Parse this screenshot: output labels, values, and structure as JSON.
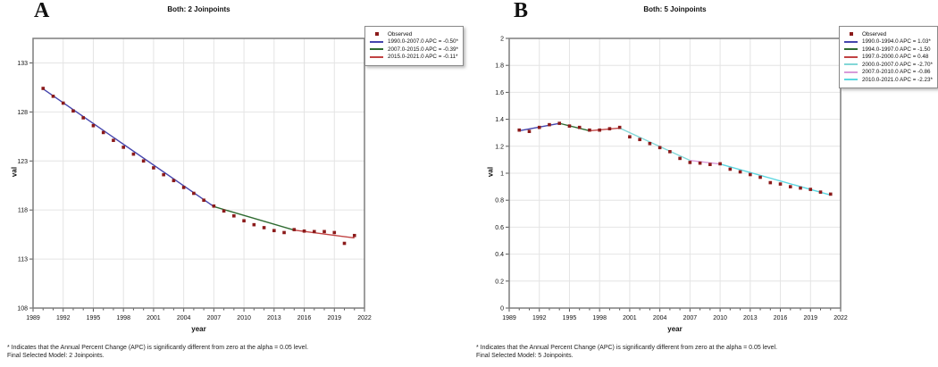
{
  "chart_data": [
    {
      "type": "line",
      "panel_label": "A",
      "title": "Both: 2 Joinpoints",
      "xlabel": "year",
      "ylabel": "val",
      "xlim": [
        1989,
        2022
      ],
      "ylim": [
        108,
        135.5
      ],
      "x_ticks": [
        1989,
        1992,
        1995,
        1998,
        2001,
        2004,
        2007,
        2010,
        2013,
        2016,
        2019,
        2022
      ],
      "y_ticks": [
        108,
        113,
        118,
        123,
        128,
        133
      ],
      "grid": true,
      "legend_position": "right-outside",
      "observed": {
        "label": "Observed",
        "color": "#8b1a1a",
        "years": [
          1990,
          1991,
          1992,
          1993,
          1994,
          1995,
          1996,
          1997,
          1998,
          1999,
          2000,
          2001,
          2002,
          2003,
          2004,
          2005,
          2006,
          2007,
          2008,
          2009,
          2010,
          2011,
          2012,
          2013,
          2014,
          2015,
          2016,
          2017,
          2018,
          2019,
          2020,
          2021
        ],
        "values": [
          130.4,
          129.6,
          128.9,
          128.1,
          127.4,
          126.6,
          125.9,
          125.1,
          124.4,
          123.7,
          123.0,
          122.3,
          121.6,
          121.0,
          120.3,
          119.7,
          119.0,
          118.4,
          117.9,
          117.4,
          116.9,
          116.5,
          116.2,
          115.9,
          115.7,
          116.0,
          115.85,
          115.8,
          115.8,
          115.7,
          114.6,
          115.4
        ]
      },
      "segments": [
        {
          "legend_text": "1990.0-2007.0 APC  =  -0.50*",
          "color": "#4545ad",
          "x": [
            1990,
            2007
          ],
          "y": [
            130.35,
            118.35
          ]
        },
        {
          "legend_text": "2007.0-2015.0 APC  =  -0.39*",
          "color": "#2f6b31",
          "x": [
            2007,
            2015
          ],
          "y": [
            118.35,
            115.95
          ]
        },
        {
          "legend_text": "2015.0-2021.0 APC  =  -0.11*",
          "color": "#c14343",
          "x": [
            2015,
            2021
          ],
          "y": [
            115.95,
            115.15
          ]
        }
      ],
      "footnotes": [
        "* Indicates that the Annual Percent Change (APC) is significantly different from zero at the alpha = 0.05 level.",
        "Final Selected Model: 2 Joinpoints."
      ]
    },
    {
      "type": "line",
      "panel_label": "B",
      "title": "Both: 5 Joinpoints",
      "xlabel": "year",
      "ylabel": "val",
      "xlim": [
        1989,
        2022
      ],
      "ylim": [
        0,
        2
      ],
      "x_ticks": [
        1989,
        1992,
        1995,
        1998,
        2001,
        2004,
        2007,
        2010,
        2013,
        2016,
        2019,
        2022
      ],
      "y_ticks": [
        0,
        0.2,
        0.4,
        0.6,
        0.8,
        1,
        1.2,
        1.4,
        1.6,
        1.8,
        2
      ],
      "grid": true,
      "legend_position": "right-outside",
      "observed": {
        "label": "Observed",
        "color": "#8b1a1a",
        "years": [
          1990,
          1991,
          1992,
          1993,
          1994,
          1995,
          1996,
          1997,
          1998,
          1999,
          2000,
          2001,
          2002,
          2003,
          2004,
          2005,
          2006,
          2007,
          2008,
          2009,
          2010,
          2011,
          2012,
          2013,
          2014,
          2015,
          2016,
          2017,
          2018,
          2019,
          2020,
          2021
        ],
        "values": [
          1.32,
          1.31,
          1.34,
          1.36,
          1.37,
          1.35,
          1.34,
          1.32,
          1.32,
          1.33,
          1.34,
          1.27,
          1.25,
          1.22,
          1.19,
          1.16,
          1.11,
          1.08,
          1.075,
          1.065,
          1.07,
          1.03,
          1.01,
          0.99,
          0.97,
          0.93,
          0.92,
          0.9,
          0.89,
          0.88,
          0.86,
          0.845
        ]
      },
      "segments": [
        {
          "legend_text": "1990.0-1994.0 APC  =  1.03*",
          "color": "#4545ad",
          "x": [
            1990,
            1994
          ],
          "y": [
            1.315,
            1.37
          ]
        },
        {
          "legend_text": "1994.0-1997.0 APC  =  -1.50",
          "color": "#2f6b31",
          "x": [
            1994,
            1997
          ],
          "y": [
            1.37,
            1.315
          ]
        },
        {
          "legend_text": "1997.0-2000.0 APC  =  0.48",
          "color": "#c14343",
          "x": [
            1997,
            2000
          ],
          "y": [
            1.315,
            1.335
          ]
        },
        {
          "legend_text": "2000.0-2007.0 APC  =  -2.70*",
          "color": "#82d7d7",
          "x": [
            2000,
            2007
          ],
          "y": [
            1.335,
            1.095
          ]
        },
        {
          "legend_text": "2007.0-2010.0 APC  =  -0.86",
          "color": "#d99bd9",
          "x": [
            2007,
            2010
          ],
          "y": [
            1.095,
            1.068
          ]
        },
        {
          "legend_text": "2010.0-2021.0 APC  =  -2.23*",
          "color": "#5cd6e0",
          "x": [
            2010,
            2021
          ],
          "y": [
            1.068,
            0.838
          ]
        }
      ],
      "footnotes": [
        "* Indicates that the Annual Percent Change (APC) is significantly different from zero at the alpha = 0.05 level.",
        "Final Selected Model: 5 Joinpoints."
      ]
    }
  ]
}
